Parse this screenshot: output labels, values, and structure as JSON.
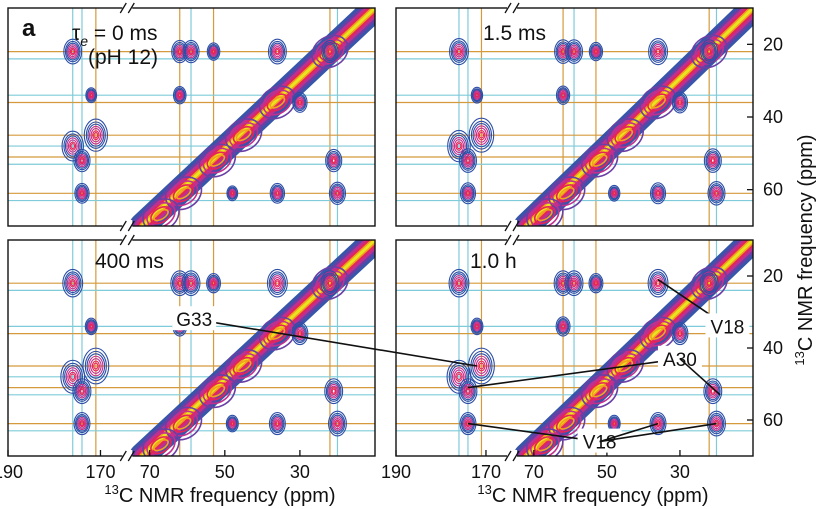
{
  "figure": {
    "panel_letter": "a",
    "xlabel": "13C NMR frequency (ppm)",
    "ylabel": "13C NMR frequency (ppm)"
  },
  "chart_data": [
    {
      "type": "contour",
      "panel": "top-left",
      "label_prefix": "τ",
      "label_sub": "e",
      "label_suffix": " = 0 ms",
      "label_line2": "(pH 12)",
      "xlim": [
        190,
        10
      ],
      "ylim": [
        10,
        70
      ],
      "x_axis_break": [
        165,
        75
      ],
      "xticks": [],
      "yticks": []
    },
    {
      "type": "contour",
      "panel": "top-right",
      "label": "1.5 ms",
      "xlim": [
        190,
        10
      ],
      "ylim": [
        10,
        70
      ],
      "x_axis_break": [
        165,
        75
      ],
      "xticks": [],
      "yticks": [
        20,
        40,
        60
      ]
    },
    {
      "type": "contour",
      "panel": "bottom-left",
      "label": "400 ms",
      "xlim": [
        190,
        10
      ],
      "ylim": [
        10,
        70
      ],
      "x_axis_break": [
        165,
        75
      ],
      "xticks": [
        190,
        170,
        70,
        50,
        30
      ],
      "yticks": []
    },
    {
      "type": "contour",
      "panel": "bottom-right",
      "label": "1.0 h",
      "xlim": [
        190,
        10
      ],
      "ylim": [
        10,
        70
      ],
      "x_axis_break": [
        165,
        75
      ],
      "xticks": [
        190,
        170,
        70,
        50,
        30
      ],
      "yticks": [
        20,
        40,
        60
      ],
      "annotations": [
        {
          "text": "V18",
          "target": [
            21,
            36
          ],
          "label_at": [
            34,
            17
          ]
        },
        {
          "text": "G33",
          "target": [
            45,
            172
          ],
          "label_at": [
            32,
            163
          ]
        },
        {
          "text": "A30",
          "target": [
            51,
            174
          ],
          "label_at": [
            43,
            30
          ]
        },
        {
          "text": "A30",
          "target": [
            53,
            19
          ],
          "label_at": [
            43,
            30
          ]
        },
        {
          "text": "V18",
          "target": [
            61,
            174
          ],
          "label_at": [
            66,
            52
          ]
        },
        {
          "text": "V18",
          "target": [
            61,
            36
          ],
          "label_at": [
            66,
            52
          ]
        },
        {
          "text": "V18",
          "target": [
            61,
            20
          ],
          "label_at": [
            66,
            52
          ]
        }
      ]
    }
  ],
  "grid": {
    "orange_ppm": [
      171,
      62,
      53,
      22
    ],
    "cyan_ppm": [
      176,
      174,
      59,
      20
    ],
    "orange_rows": [
      22,
      36,
      45,
      51,
      61
    ],
    "cyan_rows": [
      24,
      34,
      48,
      53,
      63
    ]
  },
  "peaks": [
    {
      "x": 176,
      "y": 22,
      "s": 1.0
    },
    {
      "x": 176,
      "y": 48,
      "s": 1.2
    },
    {
      "x": 174,
      "y": 52,
      "s": 0.9
    },
    {
      "x": 174,
      "y": 61,
      "s": 0.8
    },
    {
      "x": 172,
      "y": 34,
      "s": 0.6
    },
    {
      "x": 171,
      "y": 45,
      "s": 1.3
    },
    {
      "x": 62,
      "y": 22,
      "s": 0.9
    },
    {
      "x": 62,
      "y": 34,
      "s": 0.7
    },
    {
      "x": 59,
      "y": 22,
      "s": 0.9
    },
    {
      "x": 53,
      "y": 22,
      "s": 0.7
    },
    {
      "x": 36,
      "y": 22,
      "s": 1.0
    },
    {
      "x": 36,
      "y": 61,
      "s": 0.8
    },
    {
      "x": 30,
      "y": 36,
      "s": 0.8
    },
    {
      "x": 22,
      "y": 22,
      "s": 0.9
    },
    {
      "x": 21,
      "y": 52,
      "s": 0.9
    },
    {
      "x": 20,
      "y": 61,
      "s": 0.9
    },
    {
      "x": 48,
      "y": 61,
      "s": 0.6
    }
  ],
  "diagonal_peaks": [
    {
      "x": 22,
      "y": 22
    },
    {
      "x": 36,
      "y": 36
    },
    {
      "x": 45,
      "y": 45
    },
    {
      "x": 52,
      "y": 52
    },
    {
      "x": 61,
      "y": 61
    },
    {
      "x": 67,
      "y": 67
    }
  ],
  "contour_colors": [
    "#2d4ea6",
    "#6a3fa6",
    "#c2308f",
    "#e6245a",
    "#f2a31c",
    "#e8e81f"
  ]
}
